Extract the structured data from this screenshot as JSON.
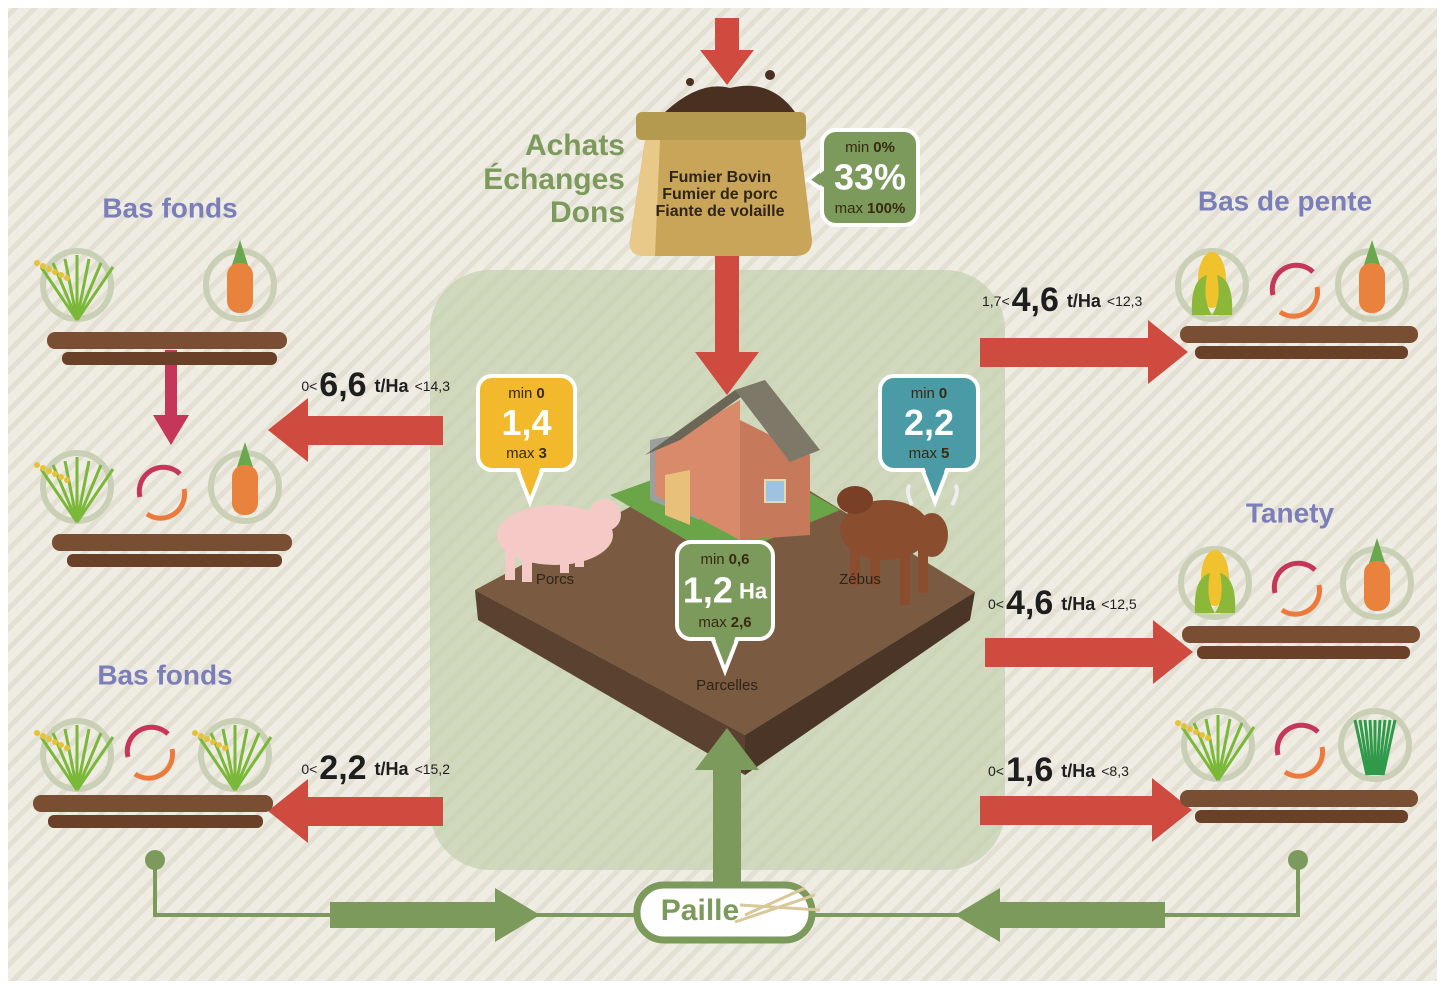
{
  "inputs": {
    "label_lines": [
      "Achats",
      "Échanges",
      "Dons"
    ],
    "sack_lines": [
      "Fumier Bovin",
      "Fumier de porc",
      "Fiante de volaille"
    ],
    "badge": {
      "min_label": "min",
      "min": "0%",
      "value": "33%",
      "max_label": "max",
      "max": "100%"
    }
  },
  "farm": {
    "pigs": {
      "label": "Porcs",
      "badge": {
        "min_label": "min",
        "min": "0",
        "value": "1,4",
        "max_label": "max",
        "max": "3"
      }
    },
    "zebus": {
      "label": "Zébus",
      "badge": {
        "min_label": "min",
        "min": "0",
        "value": "2,2",
        "max_label": "max",
        "max": "5"
      }
    },
    "parcels": {
      "label": "Parcelles",
      "badge": {
        "min_label": "min",
        "min": "0,6",
        "value": "1,2",
        "unit": "Ha",
        "max_label": "max",
        "max": "2,6"
      }
    }
  },
  "fields": [
    {
      "title": "Bas fonds",
      "yield": {
        "low": "0<",
        "value": "6,6",
        "unit": "t/Ha",
        "high": "<14,3"
      }
    },
    {
      "title": "Bas fonds",
      "yield": {
        "low": "0<",
        "value": "2,2",
        "unit": "t/Ha",
        "high": "<15,2"
      }
    },
    {
      "title": "Bas de pente",
      "yield": {
        "low": "1,7<",
        "value": "4,6",
        "unit": "t/Ha",
        "high": "<12,3"
      }
    },
    {
      "title": "Tanety",
      "yield": {
        "low": "0<",
        "value": "4,6",
        "unit": "t/Ha",
        "high": "<12,5"
      }
    },
    {
      "yield": {
        "low": "0<",
        "value": "1,6",
        "unit": "t/Ha",
        "high": "<8,3"
      }
    }
  ],
  "straw": "Paille"
}
